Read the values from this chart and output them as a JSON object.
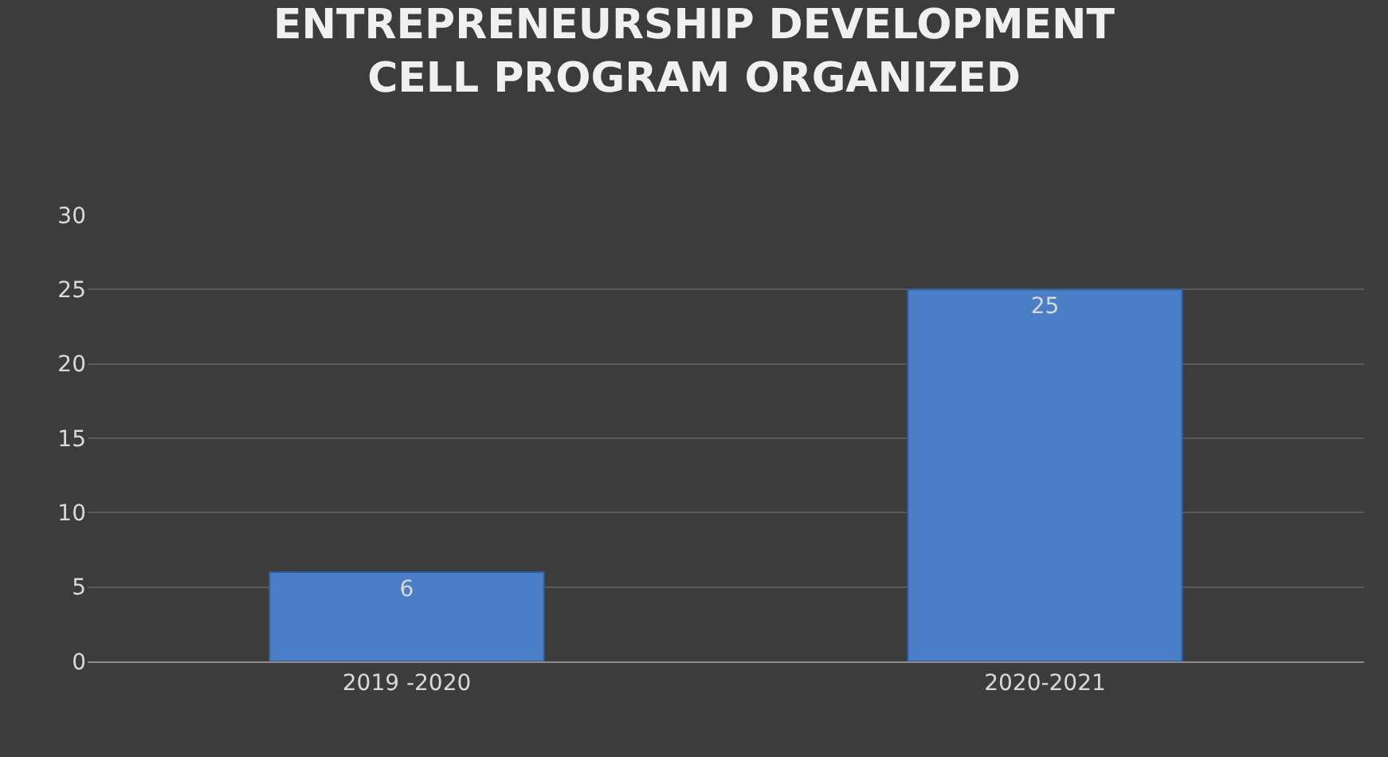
{
  "chart_data": {
    "type": "bar",
    "title": "ENTREPRENEURSHIP DEVELOPMENT\nCELL PROGRAM ORGANIZED",
    "categories": [
      "2019 -2020",
      "2020-2021"
    ],
    "values": [
      6,
      25
    ],
    "color": "#4a7fc8",
    "ylim": [
      0,
      30
    ],
    "yticks": [
      0,
      5,
      10,
      15,
      20,
      25,
      30
    ],
    "grid": "y",
    "data_labels": true
  }
}
